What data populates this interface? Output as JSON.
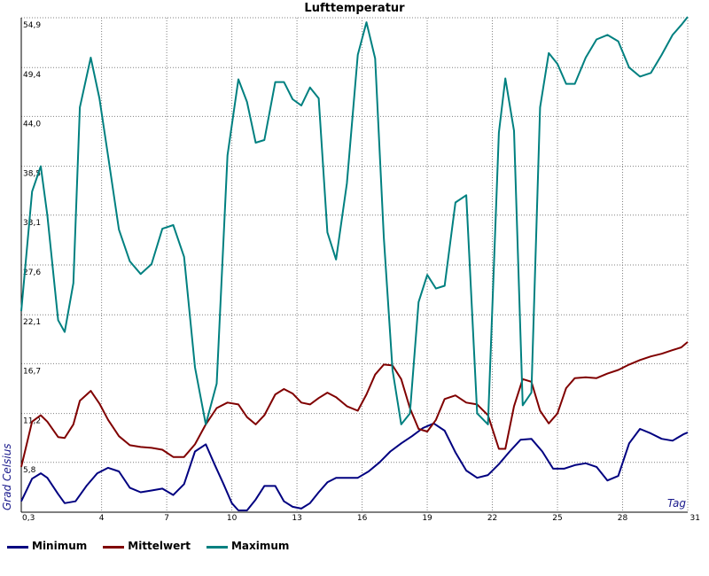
{
  "chart_data": {
    "type": "line",
    "title": "Lufttemperatur",
    "xlabel": "Tag",
    "ylabel": "Grad Celsius",
    "xlim": [
      0.3,
      31
    ],
    "ylim": [
      0.3,
      54.9
    ],
    "y_ticks": [
      "0,3",
      "5,8",
      "11,2",
      "16,7",
      "22,1",
      "27,6",
      "33,1",
      "38,5",
      "44,0",
      "49,4",
      "54,9"
    ],
    "x_ticks": [
      "0,3",
      "4",
      "7",
      "10",
      "13",
      "16",
      "19",
      "22",
      "25",
      "28",
      "31"
    ],
    "grid": true,
    "legend_position": "bottom",
    "series": [
      {
        "name": "Minimum",
        "color": "#000080",
        "x": [
          0.3,
          0.8,
          1.2,
          1.5,
          2.0,
          2.3,
          2.8,
          3.3,
          3.8,
          4.3,
          4.8,
          5.3,
          5.8,
          6.3,
          6.8,
          7.3,
          7.8,
          8.3,
          8.8,
          9.2,
          9.6,
          10.0,
          10.3,
          10.7,
          11.1,
          11.5,
          12.0,
          12.4,
          12.8,
          13.2,
          13.6,
          14.0,
          14.4,
          14.8,
          15.3,
          15.8,
          16.3,
          16.8,
          17.3,
          17.8,
          18.3,
          18.8,
          19.3,
          19.8,
          20.3,
          20.8,
          21.3,
          21.8,
          22.3,
          22.8,
          23.3,
          23.8,
          24.3,
          24.8,
          25.3,
          25.8,
          26.3,
          26.8,
          27.3,
          27.8,
          28.3,
          28.8,
          29.3,
          29.8,
          30.3,
          30.8,
          31.0
        ],
        "y": [
          1.5,
          4.0,
          4.6,
          4.1,
          2.3,
          1.3,
          1.5,
          3.2,
          4.6,
          5.2,
          4.8,
          3.0,
          2.5,
          2.7,
          2.9,
          2.2,
          3.4,
          7.0,
          7.8,
          5.6,
          3.5,
          1.3,
          0.5,
          0.5,
          1.7,
          3.2,
          3.2,
          1.5,
          0.9,
          0.7,
          1.3,
          2.5,
          3.6,
          4.1,
          4.1,
          4.1,
          4.8,
          5.8,
          7.0,
          7.9,
          8.7,
          9.6,
          10.1,
          9.3,
          6.9,
          4.9,
          4.1,
          4.4,
          5.6,
          7.0,
          8.3,
          8.4,
          7.0,
          5.1,
          5.1,
          5.5,
          5.7,
          5.3,
          3.8,
          4.3,
          7.9,
          9.5,
          9.0,
          8.4,
          8.2,
          8.9,
          9.1
        ]
      },
      {
        "name": "Mittelwert",
        "color": "#800000",
        "x": [
          0.3,
          0.8,
          1.2,
          1.5,
          2.0,
          2.3,
          2.7,
          3.0,
          3.5,
          3.9,
          4.3,
          4.8,
          5.3,
          5.8,
          6.3,
          6.8,
          7.3,
          7.8,
          8.3,
          8.8,
          9.3,
          9.8,
          10.3,
          10.7,
          11.1,
          11.5,
          12.0,
          12.4,
          12.8,
          13.2,
          13.6,
          14.0,
          14.4,
          14.8,
          15.3,
          15.8,
          16.2,
          16.6,
          17.0,
          17.4,
          17.8,
          18.2,
          18.6,
          19.0,
          19.4,
          19.8,
          20.3,
          20.8,
          21.3,
          21.8,
          22.3,
          22.6,
          23.0,
          23.4,
          23.8,
          24.2,
          24.6,
          25.0,
          25.4,
          25.8,
          26.3,
          26.8,
          27.3,
          27.8,
          28.3,
          28.8,
          29.3,
          29.8,
          30.3,
          30.7,
          31.0
        ],
        "y": [
          5.3,
          10.3,
          11.0,
          10.3,
          8.6,
          8.5,
          10.0,
          12.6,
          13.7,
          12.3,
          10.5,
          8.7,
          7.7,
          7.5,
          7.4,
          7.2,
          6.4,
          6.4,
          7.8,
          10.0,
          11.8,
          12.4,
          12.2,
          10.8,
          10.0,
          11.0,
          13.3,
          13.9,
          13.4,
          12.4,
          12.2,
          12.9,
          13.5,
          13.0,
          12.0,
          11.5,
          13.3,
          15.5,
          16.6,
          16.5,
          15.0,
          11.8,
          9.5,
          9.2,
          10.5,
          12.8,
          13.2,
          12.4,
          12.2,
          11.0,
          7.3,
          7.3,
          12.0,
          15.0,
          14.7,
          11.5,
          10.1,
          11.2,
          14.0,
          15.1,
          15.2,
          15.1,
          15.6,
          16.0,
          16.6,
          17.1,
          17.5,
          17.8,
          18.2,
          18.5,
          19.1
        ]
      },
      {
        "name": "Maximum",
        "color": "#008080",
        "x": [
          0.3,
          0.8,
          1.2,
          1.5,
          2.0,
          2.3,
          2.7,
          3.0,
          3.5,
          3.9,
          4.3,
          4.8,
          5.3,
          5.8,
          6.3,
          6.8,
          7.3,
          7.8,
          8.3,
          8.8,
          9.3,
          9.8,
          10.3,
          10.7,
          11.1,
          11.5,
          12.0,
          12.4,
          12.8,
          13.2,
          13.6,
          14.0,
          14.4,
          14.8,
          15.3,
          15.8,
          16.2,
          16.6,
          17.0,
          17.4,
          17.8,
          18.2,
          18.6,
          19.0,
          19.4,
          19.8,
          20.3,
          20.8,
          21.3,
          21.8,
          22.3,
          22.6,
          23.0,
          23.4,
          23.8,
          24.2,
          24.6,
          25.0,
          25.4,
          25.8,
          26.3,
          26.8,
          27.3,
          27.8,
          28.3,
          28.8,
          29.3,
          29.8,
          30.3,
          30.7,
          31.0
        ],
        "y": [
          22.5,
          35.7,
          38.5,
          33.1,
          21.5,
          20.2,
          25.6,
          45.0,
          50.5,
          46.0,
          39.6,
          31.5,
          28.0,
          26.6,
          27.7,
          31.6,
          32.0,
          28.5,
          16.3,
          10.0,
          14.5,
          39.7,
          48.1,
          45.6,
          41.1,
          41.4,
          47.8,
          47.8,
          45.9,
          45.2,
          47.2,
          46.0,
          31.2,
          28.2,
          36.6,
          50.8,
          54.4,
          50.4,
          30.6,
          16.0,
          10.0,
          11.2,
          23.5,
          26.5,
          25.0,
          25.3,
          34.5,
          35.3,
          11.2,
          10.0,
          42.2,
          48.2,
          42.4,
          12.1,
          13.5,
          45.0,
          51.0,
          49.8,
          47.6,
          47.6,
          50.5,
          52.5,
          53.0,
          52.3,
          49.4,
          48.4,
          48.8,
          50.8,
          53.0,
          54.1,
          55.0
        ]
      }
    ]
  }
}
